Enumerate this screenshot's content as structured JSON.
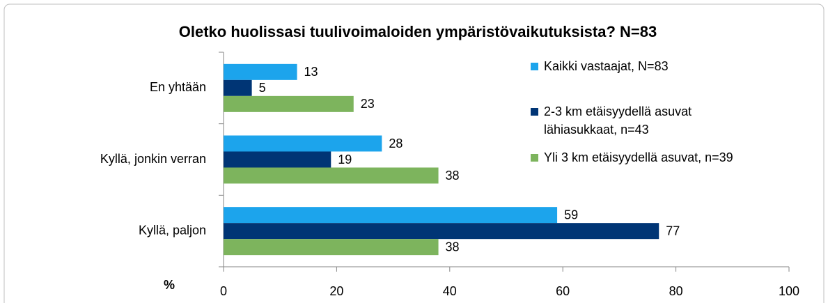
{
  "chart_data": {
    "type": "bar",
    "orientation": "horizontal",
    "title": "Oletko huolissasi tuulivoimaloiden ympäristövaikutuksista? N=83",
    "xlabel": "%",
    "categories": [
      "En yhtään",
      "Kyllä, jonkin verran",
      "Kyllä, paljon"
    ],
    "series": [
      {
        "name": "Kaikki vastaajat, N=83",
        "color": "#1ca4ec",
        "values": [
          13,
          28,
          59
        ]
      },
      {
        "name": "2-3 km etäisyydellä asuvat lähiasukkaat, n=43",
        "color": "#003575",
        "values": [
          5,
          19,
          77
        ]
      },
      {
        "name": "Yli 3 km etäisyydellä asuvat, n=39",
        "color": "#7db45d",
        "values": [
          23,
          38,
          38
        ]
      }
    ],
    "xlim": [
      0,
      100
    ],
    "xticks": [
      0,
      20,
      40,
      60,
      80,
      100
    ],
    "grid": false,
    "legend": "right"
  }
}
